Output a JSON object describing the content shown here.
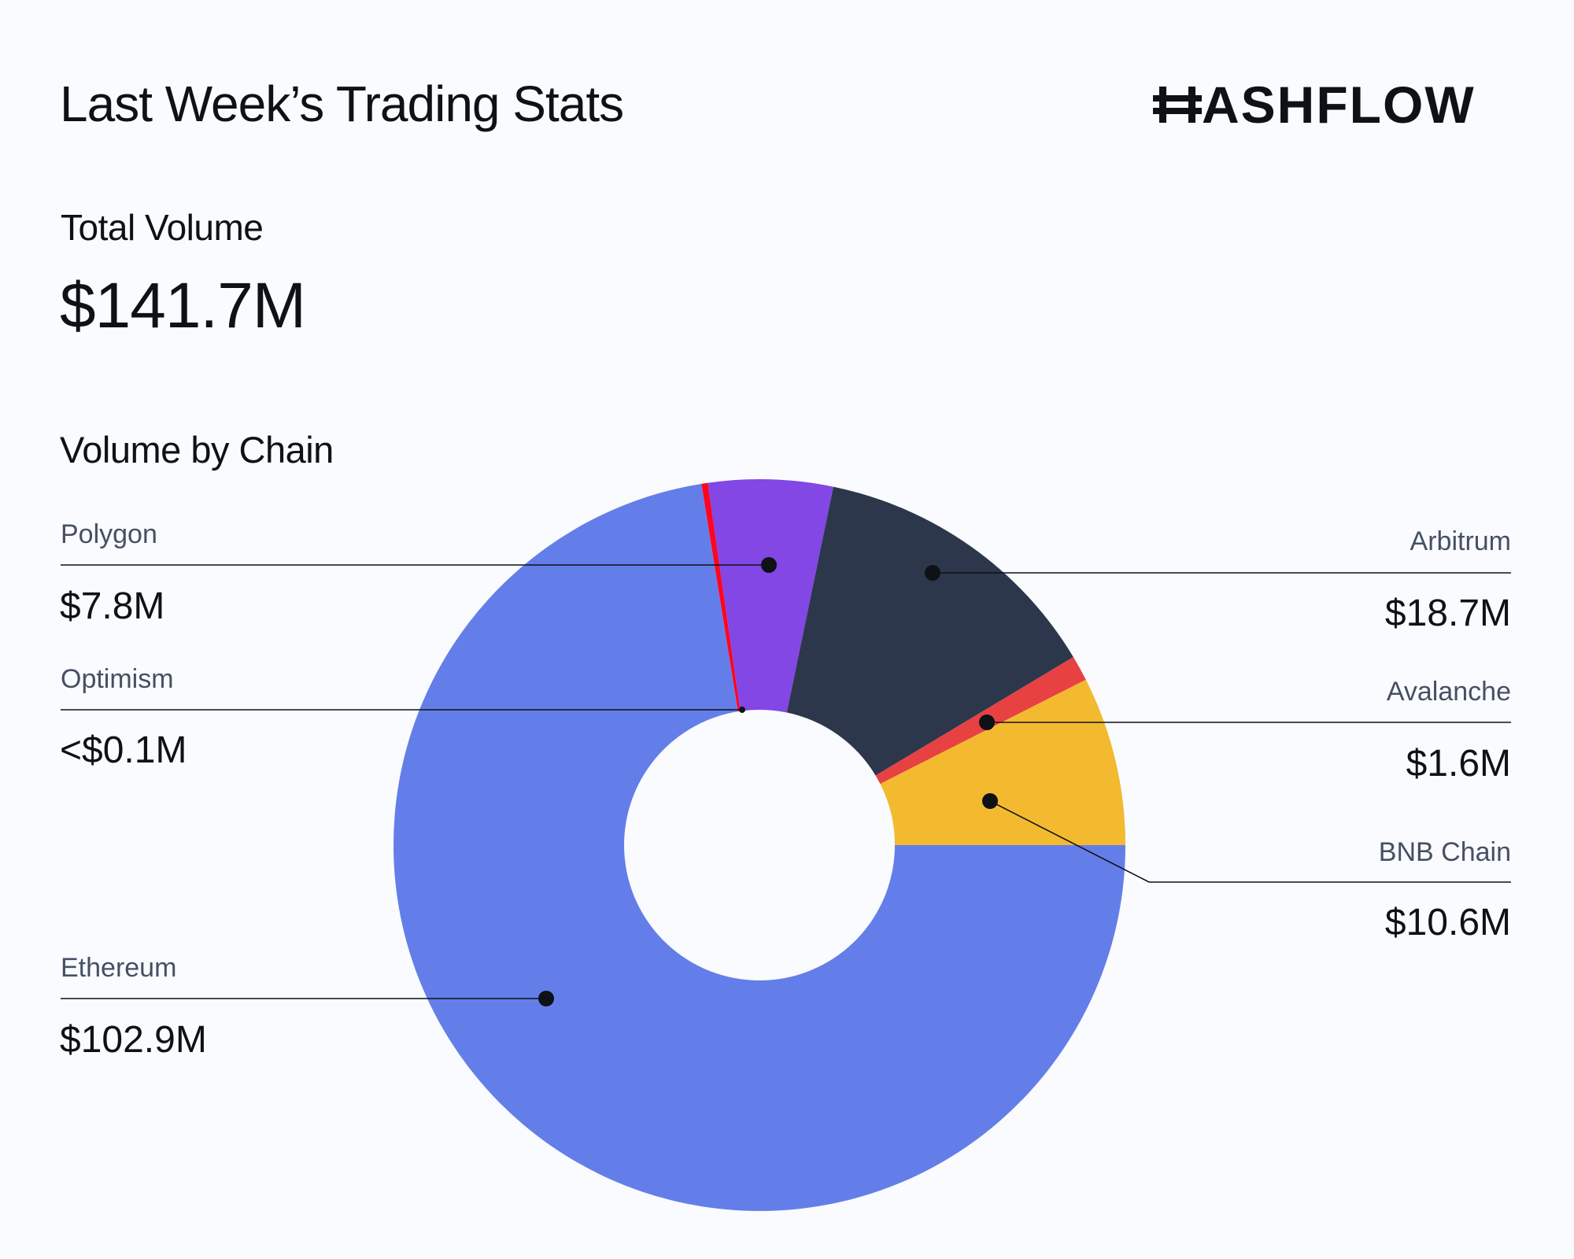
{
  "header": {
    "title": "Last Week’s Trading Stats",
    "logo_text": "ASHFLOW",
    "logo_full": "HASHFLOW"
  },
  "total_volume": {
    "label": "Total Volume",
    "value": "$141.7M"
  },
  "chart_data": {
    "type": "pie",
    "variant": "donut",
    "title": "Volume by Chain",
    "unit": "$M",
    "start_angle_deg": 90,
    "direction": "clockwise",
    "slices": [
      {
        "name": "Ethereum",
        "value": 102.9,
        "label": "$102.9M",
        "color": "#647EE9"
      },
      {
        "name": "Optimism",
        "value": 0.05,
        "label": "<$0.1M",
        "color": "#FF0420"
      },
      {
        "name": "Polygon",
        "value": 7.8,
        "label": "$7.8M",
        "color": "#8247E5"
      },
      {
        "name": "Arbitrum",
        "value": 18.7,
        "label": "$18.7M",
        "color": "#2D374B"
      },
      {
        "name": "Avalanche",
        "value": 1.6,
        "label": "$1.6M",
        "color": "#E84142"
      },
      {
        "name": "BNB Chain",
        "value": 10.6,
        "label": "$10.6M",
        "color": "#F3BA2F"
      }
    ]
  }
}
